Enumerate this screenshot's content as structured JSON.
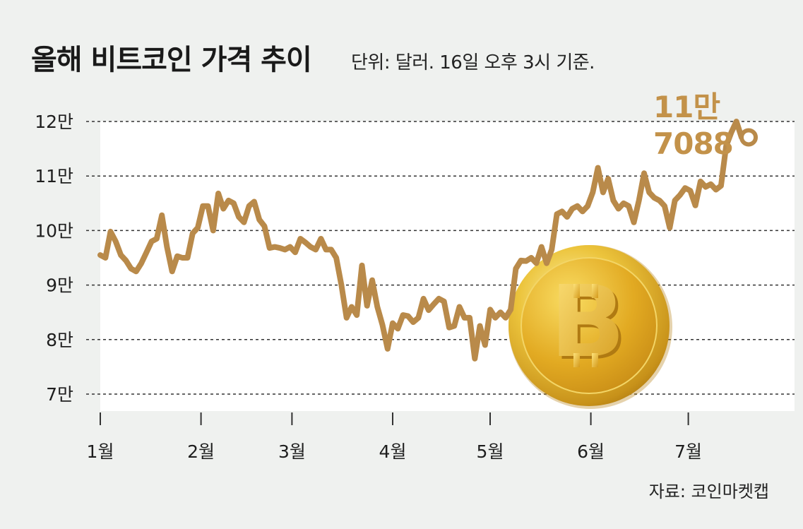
{
  "title": "올해 비트코인 가격 추이",
  "subtitle": "단위: 달러. 16일 오후 3시 기준.",
  "source": "자료: 코인마켓캡",
  "colors": {
    "line": "#b98a4a",
    "background": "#eff1ef",
    "plot_area": "#ffffff",
    "annotation": "#c3924a",
    "coin": "#e3b52a"
  },
  "chart_data": {
    "type": "line",
    "title": "올해 비트코인 가격 추이",
    "xlabel": "",
    "ylabel": "",
    "ylim": [
      70000,
      120000
    ],
    "y_ticks": [
      {
        "value": 120000,
        "label": "12만"
      },
      {
        "value": 110000,
        "label": "11만"
      },
      {
        "value": 100000,
        "label": "10만"
      },
      {
        "value": 90000,
        "label": "9만"
      },
      {
        "value": 80000,
        "label": "8만"
      },
      {
        "value": 70000,
        "label": "7만"
      }
    ],
    "x_ticks": [
      {
        "day": 0,
        "label": "1월"
      },
      {
        "day": 31,
        "label": "2월"
      },
      {
        "day": 59,
        "label": "3월"
      },
      {
        "day": 90,
        "label": "4월"
      },
      {
        "day": 120,
        "label": "5월"
      },
      {
        "day": 151,
        "label": "6월"
      },
      {
        "day": 181,
        "label": "7월"
      }
    ],
    "grid": "horizontal dashed",
    "annotation": {
      "text": "11만 7088",
      "value": 117088
    },
    "series": [
      {
        "values": [
          [
            0,
            95500
          ],
          [
            1,
            95000
          ],
          [
            2,
            99800
          ],
          [
            3,
            98000
          ],
          [
            4,
            95500
          ],
          [
            5,
            94500
          ],
          [
            6,
            93000
          ],
          [
            7,
            92500
          ],
          [
            8,
            94000
          ],
          [
            9,
            96000
          ],
          [
            10,
            98000
          ],
          [
            11,
            98500
          ],
          [
            12,
            102800
          ],
          [
            13,
            97000
          ],
          [
            14,
            92500
          ],
          [
            15,
            95300
          ],
          [
            16,
            95000
          ],
          [
            17,
            95000
          ],
          [
            18,
            99500
          ],
          [
            19,
            100500
          ],
          [
            20,
            104500
          ],
          [
            21,
            104500
          ],
          [
            22,
            100000
          ],
          [
            23,
            106800
          ],
          [
            24,
            104000
          ],
          [
            25,
            105500
          ],
          [
            26,
            105000
          ],
          [
            27,
            102500
          ],
          [
            28,
            101500
          ],
          [
            29,
            104500
          ],
          [
            30,
            105300
          ],
          [
            31,
            102000
          ],
          [
            32,
            100800
          ],
          [
            33,
            96800
          ],
          [
            34,
            97000
          ],
          [
            35,
            96800
          ],
          [
            36,
            96500
          ],
          [
            37,
            97000
          ],
          [
            38,
            96000
          ],
          [
            39,
            98500
          ],
          [
            40,
            97800
          ],
          [
            41,
            97000
          ],
          [
            42,
            96500
          ],
          [
            43,
            98500
          ],
          [
            44,
            96500
          ],
          [
            45,
            96500
          ],
          [
            46,
            95000
          ],
          [
            47,
            90000
          ],
          [
            48,
            84000
          ],
          [
            49,
            86000
          ],
          [
            50,
            84500
          ],
          [
            51,
            93600
          ],
          [
            52,
            86200
          ],
          [
            53,
            90900
          ],
          [
            54,
            86000
          ],
          [
            55,
            82700
          ],
          [
            56,
            78300
          ],
          [
            57,
            83000
          ],
          [
            58,
            82000
          ],
          [
            59,
            84500
          ],
          [
            60,
            84300
          ],
          [
            61,
            83200
          ],
          [
            62,
            84000
          ],
          [
            63,
            87500
          ],
          [
            64,
            85400
          ],
          [
            65,
            86500
          ],
          [
            66,
            87500
          ],
          [
            67,
            87000
          ],
          [
            68,
            82200
          ],
          [
            69,
            82500
          ],
          [
            70,
            86000
          ],
          [
            71,
            84000
          ],
          [
            72,
            84000
          ],
          [
            73,
            76500
          ],
          [
            74,
            82500
          ],
          [
            75,
            79000
          ],
          [
            76,
            85500
          ],
          [
            77,
            84000
          ],
          [
            78,
            85000
          ],
          [
            79,
            84000
          ],
          [
            80,
            85500
          ],
          [
            81,
            93000
          ],
          [
            82,
            94500
          ],
          [
            83,
            94400
          ],
          [
            84,
            95000
          ],
          [
            85,
            94000
          ],
          [
            86,
            97000
          ],
          [
            87,
            94000
          ],
          [
            88,
            96500
          ],
          [
            89,
            103000
          ],
          [
            90,
            103500
          ],
          [
            91,
            102500
          ],
          [
            92,
            104000
          ],
          [
            93,
            104500
          ],
          [
            94,
            103500
          ],
          [
            95,
            104500
          ],
          [
            96,
            107000
          ],
          [
            97,
            111500
          ],
          [
            98,
            107000
          ],
          [
            99,
            109500
          ],
          [
            100,
            105500
          ],
          [
            101,
            104000
          ],
          [
            102,
            105000
          ],
          [
            103,
            104500
          ],
          [
            104,
            101500
          ],
          [
            105,
            105500
          ],
          [
            106,
            110500
          ],
          [
            107,
            107000
          ],
          [
            108,
            106000
          ],
          [
            109,
            105500
          ],
          [
            110,
            104500
          ],
          [
            111,
            100500
          ],
          [
            112,
            105500
          ],
          [
            113,
            106500
          ],
          [
            114,
            107800
          ],
          [
            115,
            107300
          ],
          [
            116,
            104600
          ],
          [
            117,
            109000
          ],
          [
            118,
            108000
          ],
          [
            119,
            108500
          ],
          [
            120,
            107500
          ],
          [
            121,
            108200
          ],
          [
            122,
            115500
          ],
          [
            123,
            118000
          ],
          [
            124,
            120000
          ],
          [
            125,
            117088
          ]
        ]
      }
    ]
  }
}
